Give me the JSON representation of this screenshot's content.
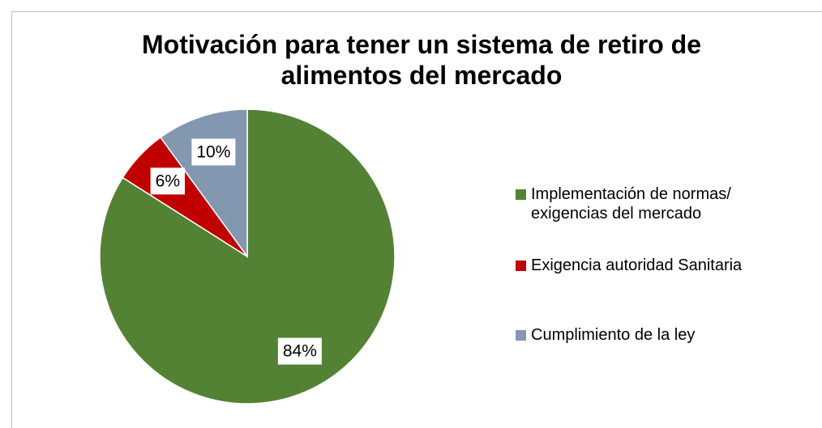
{
  "chart_data": {
    "type": "pie",
    "title": "Motivación para tener un sistema de retiro de alimentos del mercado",
    "categories": [
      "Implementación de normas/ exigencias del mercado",
      "Exigencia autoridad Sanitaria",
      "Cumplimiento de la ley"
    ],
    "values": [
      84,
      6,
      10
    ],
    "value_labels": [
      "84%",
      "6%",
      "10%"
    ],
    "colors": [
      "#548235",
      "#c00000",
      "#8497b0"
    ],
    "legend": "right"
  }
}
